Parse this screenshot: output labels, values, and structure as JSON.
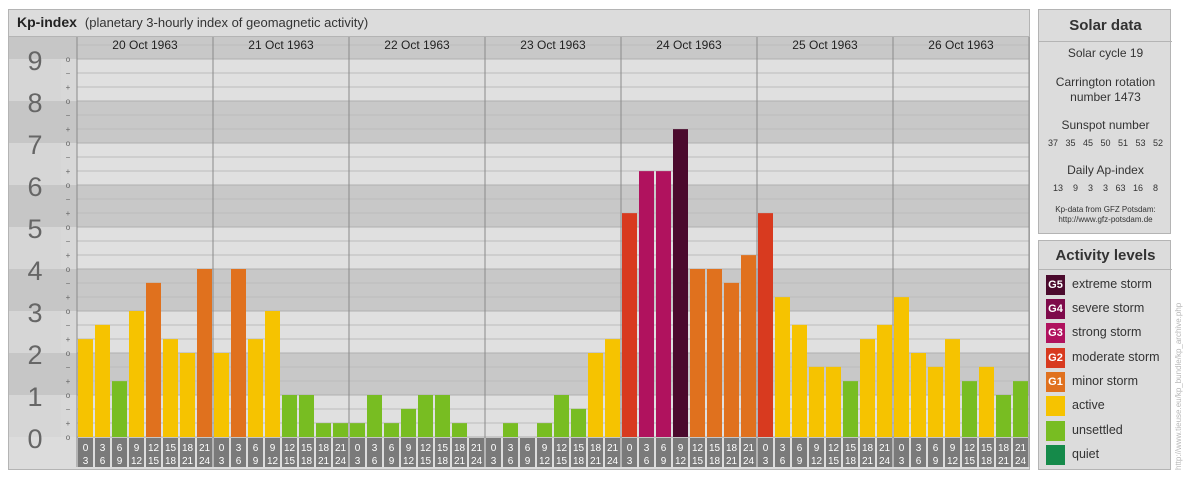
{
  "header": {
    "title": "Kp-index",
    "subtitle": "(planetary 3-hourly index of geomagnetic activity)"
  },
  "chart_data": {
    "type": "bar",
    "ylim": [
      0,
      9
    ],
    "y_ticks": [
      "0",
      "1",
      "2",
      "3",
      "4",
      "5",
      "6",
      "7",
      "8",
      "9"
    ],
    "y_minor_labels": [
      "o",
      "+",
      "−"
    ],
    "days": [
      "20 Oct 1963",
      "21 Oct 1963",
      "22 Oct 1963",
      "23 Oct 1963",
      "24 Oct 1963",
      "25 Oct 1963",
      "26 Oct 1963"
    ],
    "interval_start_labels": [
      "0",
      "3",
      "6",
      "9",
      "12",
      "15",
      "18",
      "21"
    ],
    "interval_end_labels": [
      "3",
      "6",
      "9",
      "12",
      "15",
      "18",
      "21",
      "24"
    ],
    "values": [
      [
        2.33,
        2.67,
        1.33,
        3.0,
        3.67,
        2.33,
        2.0,
        4.0
      ],
      [
        2.0,
        4.0,
        2.33,
        3.0,
        1.0,
        1.0,
        0.33,
        0.33
      ],
      [
        0.33,
        1.0,
        0.33,
        0.67,
        1.0,
        1.0,
        0.33,
        0.0
      ],
      [
        0.0,
        0.33,
        0.0,
        0.33,
        1.0,
        0.67,
        2.0,
        2.33
      ],
      [
        5.33,
        6.33,
        6.33,
        7.33,
        4.0,
        4.0,
        3.67,
        4.33
      ],
      [
        5.33,
        3.33,
        2.67,
        1.67,
        1.67,
        1.33,
        2.33,
        2.67
      ],
      [
        3.33,
        2.0,
        1.67,
        2.33,
        1.33,
        1.67,
        1.0,
        1.33
      ]
    ],
    "levels": [
      [
        2,
        2,
        1,
        2,
        3,
        2,
        2,
        3
      ],
      [
        2,
        3,
        2,
        2,
        1,
        1,
        1,
        1
      ],
      [
        1,
        1,
        1,
        1,
        1,
        1,
        1,
        1
      ],
      [
        1,
        1,
        1,
        1,
        1,
        1,
        2,
        2
      ],
      [
        4,
        5,
        5,
        7,
        3,
        3,
        3,
        3
      ],
      [
        4,
        2,
        2,
        2,
        2,
        1,
        2,
        2
      ],
      [
        2,
        2,
        2,
        2,
        1,
        2,
        1,
        1
      ]
    ]
  },
  "solar": {
    "title": "Solar data",
    "cycle": "Solar cycle 19",
    "carrington_line1": "Carrington rotation",
    "carrington_line2": "number 1473",
    "sunspot_title": "Sunspot number",
    "sunspot_values": "37   35   45   50   51   53   52",
    "ap_title": "Daily Ap-index",
    "ap_values": "13    9    3    3   63   16    8",
    "source_line1": "Kp-data from  GFZ Potsdam:",
    "source_line2": "http://www.gfz-potsdam.de"
  },
  "activity": {
    "title": "Activity levels",
    "items": [
      {
        "code": "G5",
        "label": "extreme storm",
        "color": "#4b0a2d"
      },
      {
        "code": "G4",
        "label": "severe storm",
        "color": "#7e0a4b"
      },
      {
        "code": "G3",
        "label": "strong storm",
        "color": "#b0125e"
      },
      {
        "code": "G2",
        "label": "moderate storm",
        "color": "#d83a1f"
      },
      {
        "code": "G1",
        "label": "minor storm",
        "color": "#e0711e"
      },
      {
        "code": "",
        "label": "active",
        "color": "#f6c300"
      },
      {
        "code": "",
        "label": "unsettled",
        "color": "#78bd22"
      },
      {
        "code": "",
        "label": "quiet",
        "color": "#158a4a"
      }
    ]
  },
  "watermark": "http://www.tieuse.eu/kp_bundle/kp_archive.php"
}
